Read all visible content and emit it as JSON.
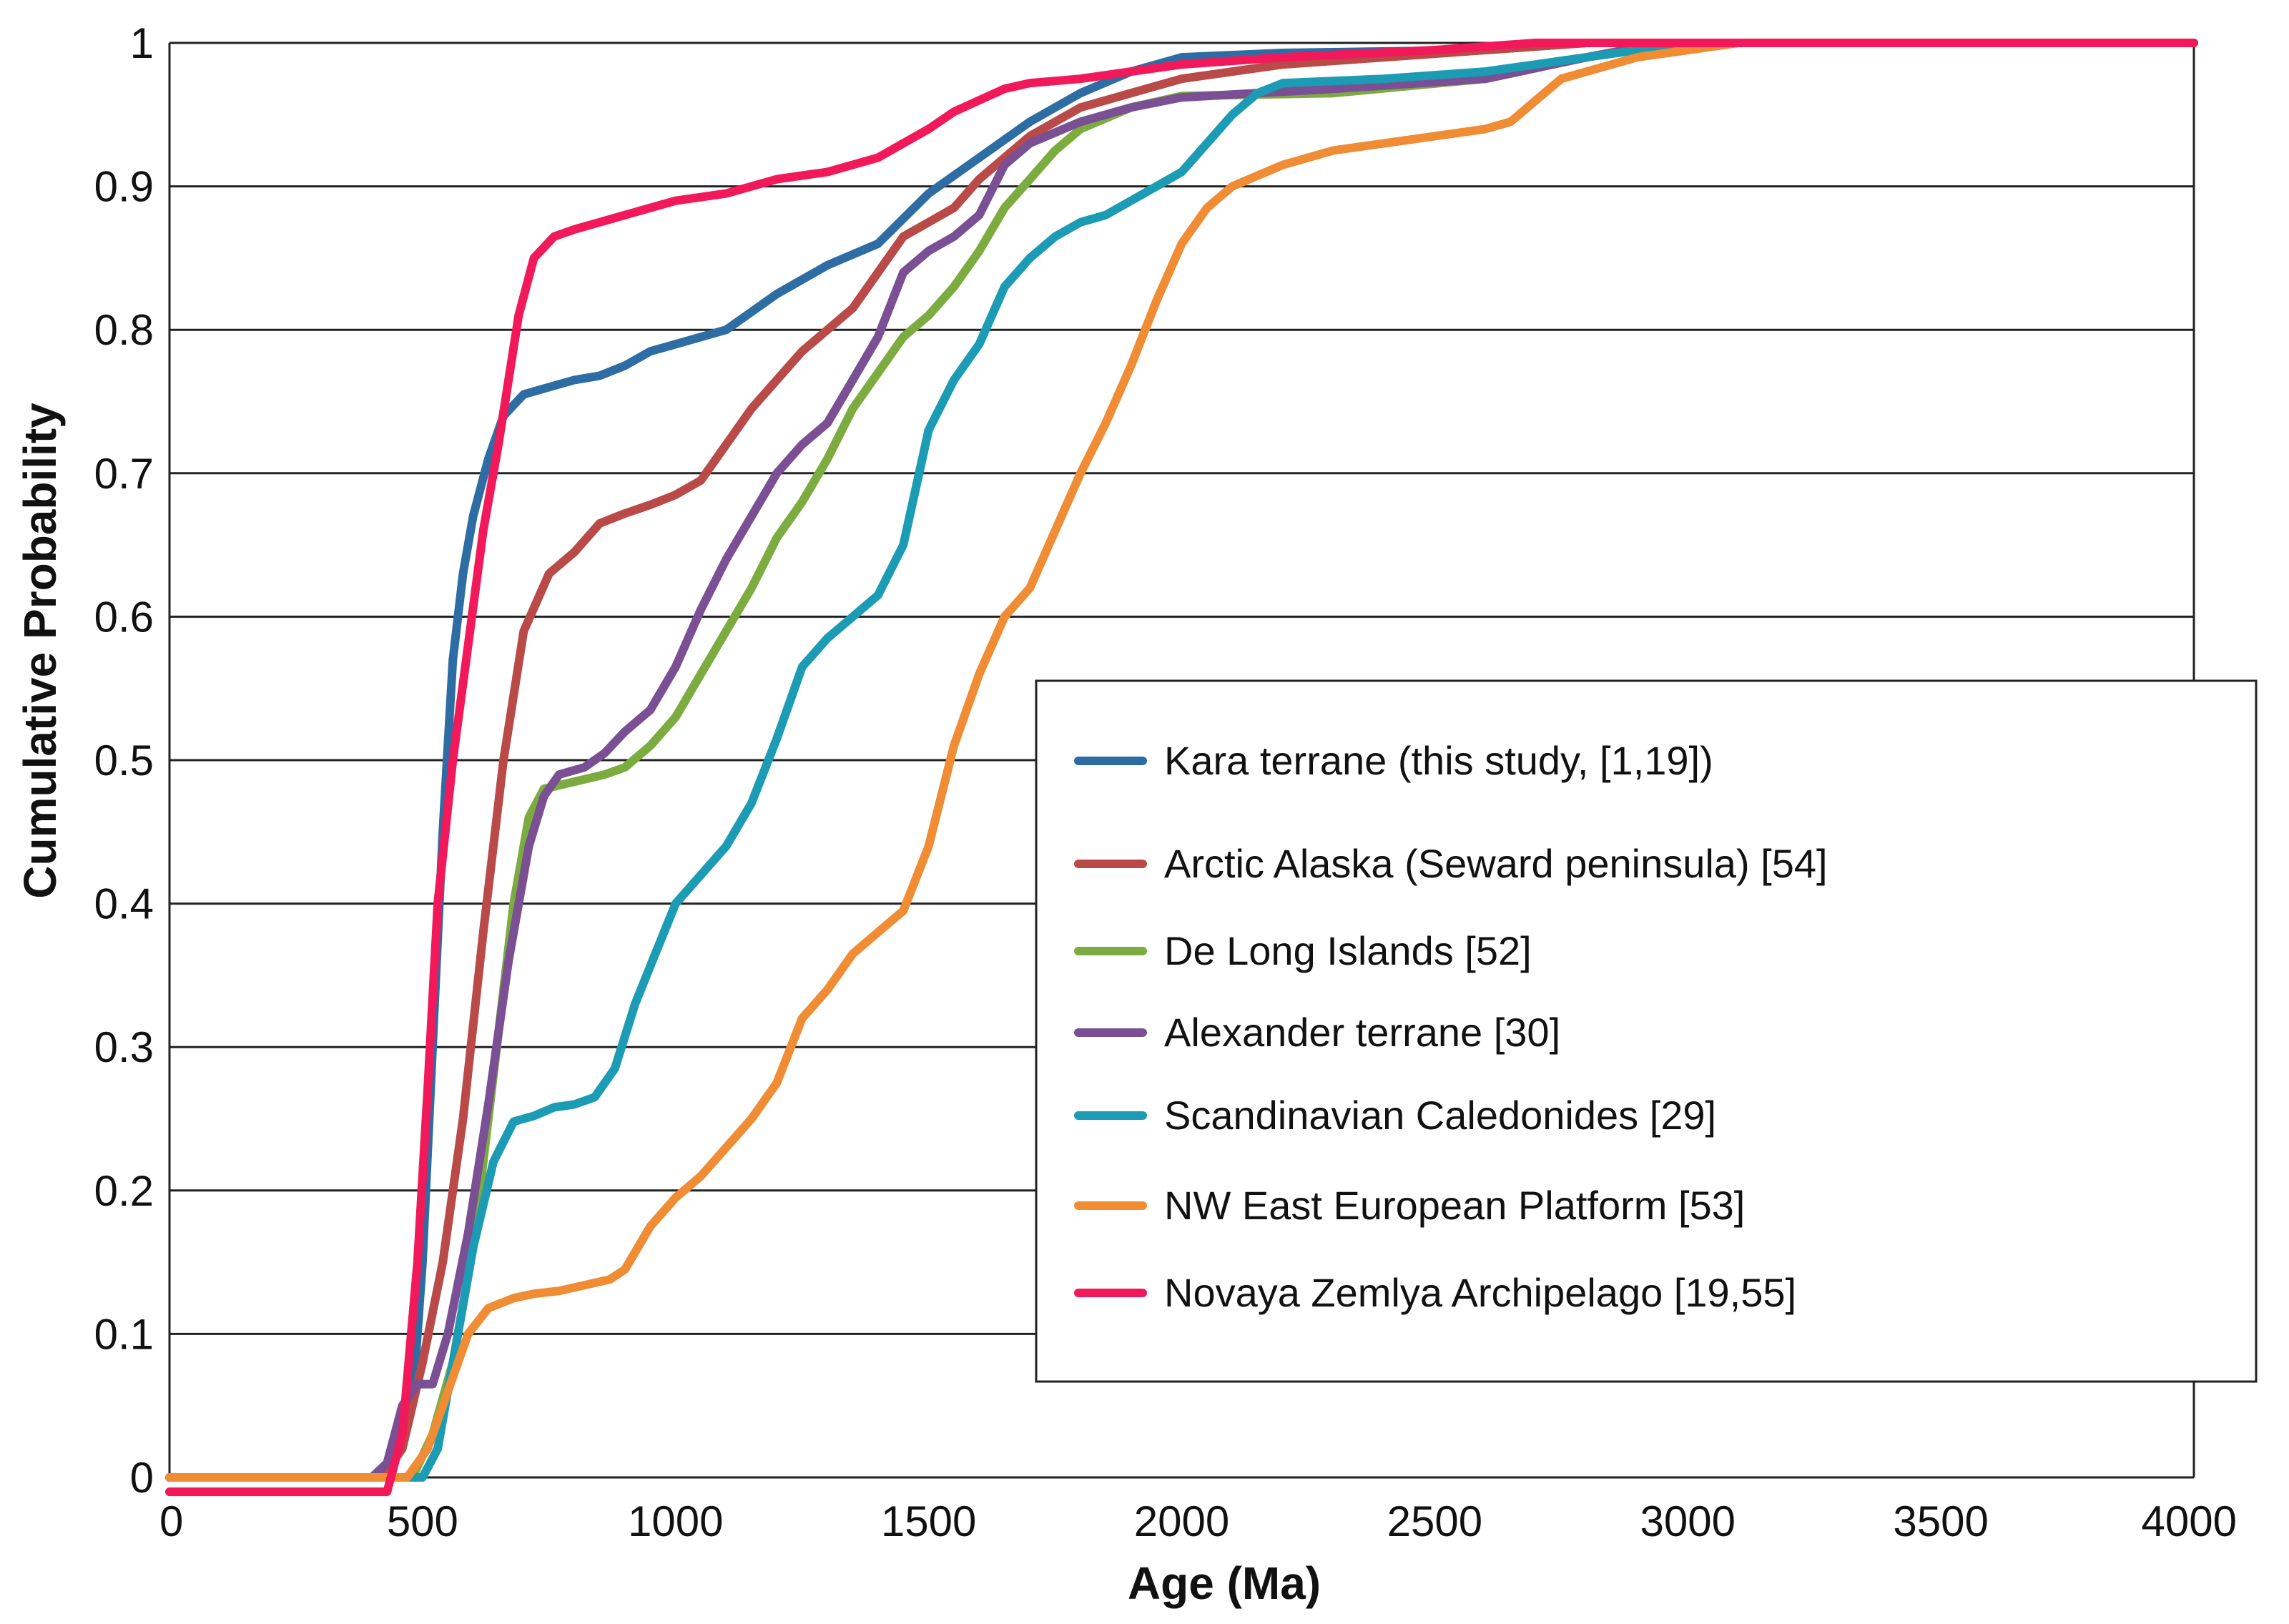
{
  "chart_data": {
    "type": "line",
    "title": "",
    "xlabel": "Age (Ma)",
    "ylabel": "Cumulative Probability",
    "xlim": [
      0,
      4000
    ],
    "ylim": [
      0,
      1
    ],
    "x_ticks": [
      0,
      500,
      1000,
      1500,
      2000,
      2500,
      3000,
      3500,
      4000
    ],
    "y_ticks": [
      0,
      0.1,
      0.2,
      0.3,
      0.4,
      0.5,
      0.6,
      0.7,
      0.8,
      0.9,
      1
    ],
    "x_tick_labels": [
      "0",
      "500",
      "1000",
      "1500",
      "2000",
      "2500",
      "3000",
      "3500",
      "4000"
    ],
    "y_tick_labels": [
      "0",
      "0.1",
      "0.2",
      "0.3",
      "0.4",
      "0.5",
      "0.6",
      "0.7",
      "0.8",
      "0.9",
      "1"
    ],
    "grid": "horizontal",
    "legend_position": "center-right",
    "series": [
      {
        "name": "Kara terrane (this study, [1,19])",
        "color": "#2e6ca4",
        "points": [
          [
            0,
            0
          ],
          [
            400,
            0
          ],
          [
            440,
            0.01
          ],
          [
            480,
            0.05
          ],
          [
            500,
            0.15
          ],
          [
            520,
            0.3
          ],
          [
            540,
            0.45
          ],
          [
            560,
            0.57
          ],
          [
            580,
            0.63
          ],
          [
            600,
            0.67
          ],
          [
            630,
            0.71
          ],
          [
            660,
            0.74
          ],
          [
            700,
            0.755
          ],
          [
            750,
            0.76
          ],
          [
            800,
            0.765
          ],
          [
            850,
            0.768
          ],
          [
            900,
            0.775
          ],
          [
            950,
            0.785
          ],
          [
            1000,
            0.79
          ],
          [
            1100,
            0.8
          ],
          [
            1200,
            0.825
          ],
          [
            1300,
            0.845
          ],
          [
            1400,
            0.86
          ],
          [
            1500,
            0.895
          ],
          [
            1600,
            0.92
          ],
          [
            1700,
            0.945
          ],
          [
            1800,
            0.965
          ],
          [
            1900,
            0.98
          ],
          [
            2000,
            0.99
          ],
          [
            2200,
            0.993
          ],
          [
            2600,
            0.995
          ],
          [
            2800,
            1
          ],
          [
            4000,
            1
          ]
        ]
      },
      {
        "name": "Arctic Alaska (Seward peninsula) [54]",
        "color": "#b94a48",
        "points": [
          [
            0,
            0
          ],
          [
            420,
            0
          ],
          [
            460,
            0.02
          ],
          [
            500,
            0.08
          ],
          [
            540,
            0.15
          ],
          [
            580,
            0.25
          ],
          [
            620,
            0.38
          ],
          [
            660,
            0.5
          ],
          [
            700,
            0.59
          ],
          [
            750,
            0.63
          ],
          [
            800,
            0.645
          ],
          [
            850,
            0.665
          ],
          [
            900,
            0.672
          ],
          [
            950,
            0.678
          ],
          [
            1000,
            0.685
          ],
          [
            1050,
            0.695
          ],
          [
            1100,
            0.72
          ],
          [
            1150,
            0.745
          ],
          [
            1200,
            0.765
          ],
          [
            1250,
            0.785
          ],
          [
            1300,
            0.8
          ],
          [
            1350,
            0.815
          ],
          [
            1400,
            0.84
          ],
          [
            1450,
            0.865
          ],
          [
            1500,
            0.875
          ],
          [
            1550,
            0.885
          ],
          [
            1600,
            0.905
          ],
          [
            1650,
            0.92
          ],
          [
            1700,
            0.935
          ],
          [
            1800,
            0.955
          ],
          [
            1900,
            0.965
          ],
          [
            2000,
            0.975
          ],
          [
            2200,
            0.985
          ],
          [
            2400,
            0.99
          ],
          [
            2800,
            1
          ],
          [
            4000,
            1
          ]
        ]
      },
      {
        "name": "De Long Islands [52]",
        "color": "#7cac3f",
        "points": [
          [
            0,
            0
          ],
          [
            480,
            0
          ],
          [
            520,
            0.03
          ],
          [
            560,
            0.08
          ],
          [
            600,
            0.16
          ],
          [
            640,
            0.28
          ],
          [
            680,
            0.4
          ],
          [
            710,
            0.46
          ],
          [
            740,
            0.48
          ],
          [
            800,
            0.485
          ],
          [
            860,
            0.49
          ],
          [
            900,
            0.495
          ],
          [
            950,
            0.51
          ],
          [
            1000,
            0.53
          ],
          [
            1050,
            0.56
          ],
          [
            1100,
            0.59
          ],
          [
            1150,
            0.62
          ],
          [
            1200,
            0.655
          ],
          [
            1250,
            0.68
          ],
          [
            1300,
            0.71
          ],
          [
            1350,
            0.745
          ],
          [
            1400,
            0.77
          ],
          [
            1450,
            0.795
          ],
          [
            1500,
            0.81
          ],
          [
            1550,
            0.83
          ],
          [
            1600,
            0.855
          ],
          [
            1650,
            0.885
          ],
          [
            1700,
            0.905
          ],
          [
            1750,
            0.925
          ],
          [
            1800,
            0.94
          ],
          [
            1900,
            0.955
          ],
          [
            2000,
            0.963
          ],
          [
            2300,
            0.965
          ],
          [
            2600,
            0.975
          ],
          [
            2800,
            0.99
          ],
          [
            2950,
            1
          ],
          [
            4000,
            1
          ]
        ]
      },
      {
        "name": "Alexander terrane [30]",
        "color": "#7a4f94",
        "points": [
          [
            0,
            0
          ],
          [
            400,
            0
          ],
          [
            430,
            0.01
          ],
          [
            460,
            0.05
          ],
          [
            490,
            0.065
          ],
          [
            520,
            0.065
          ],
          [
            550,
            0.1
          ],
          [
            590,
            0.17
          ],
          [
            630,
            0.26
          ],
          [
            670,
            0.36
          ],
          [
            710,
            0.44
          ],
          [
            740,
            0.475
          ],
          [
            770,
            0.49
          ],
          [
            820,
            0.495
          ],
          [
            860,
            0.505
          ],
          [
            900,
            0.52
          ],
          [
            950,
            0.535
          ],
          [
            1000,
            0.565
          ],
          [
            1050,
            0.605
          ],
          [
            1100,
            0.64
          ],
          [
            1150,
            0.67
          ],
          [
            1200,
            0.7
          ],
          [
            1250,
            0.72
          ],
          [
            1300,
            0.735
          ],
          [
            1350,
            0.765
          ],
          [
            1400,
            0.795
          ],
          [
            1450,
            0.84
          ],
          [
            1500,
            0.855
          ],
          [
            1550,
            0.865
          ],
          [
            1600,
            0.88
          ],
          [
            1650,
            0.915
          ],
          [
            1700,
            0.93
          ],
          [
            1800,
            0.945
          ],
          [
            1900,
            0.955
          ],
          [
            2000,
            0.962
          ],
          [
            2300,
            0.968
          ],
          [
            2600,
            0.975
          ],
          [
            2800,
            0.99
          ],
          [
            2950,
            1
          ],
          [
            4000,
            1
          ]
        ]
      },
      {
        "name": "Scandinavian Caledonides [29]",
        "color": "#1b9bb4",
        "points": [
          [
            0,
            0
          ],
          [
            500,
            0
          ],
          [
            530,
            0.02
          ],
          [
            560,
            0.08
          ],
          [
            600,
            0.16
          ],
          [
            640,
            0.22
          ],
          [
            680,
            0.248
          ],
          [
            720,
            0.252
          ],
          [
            760,
            0.258
          ],
          [
            800,
            0.26
          ],
          [
            840,
            0.265
          ],
          [
            880,
            0.285
          ],
          [
            920,
            0.33
          ],
          [
            960,
            0.365
          ],
          [
            1000,
            0.4
          ],
          [
            1050,
            0.42
          ],
          [
            1100,
            0.44
          ],
          [
            1150,
            0.47
          ],
          [
            1200,
            0.515
          ],
          [
            1250,
            0.565
          ],
          [
            1300,
            0.585
          ],
          [
            1350,
            0.6
          ],
          [
            1400,
            0.615
          ],
          [
            1450,
            0.65
          ],
          [
            1500,
            0.73
          ],
          [
            1550,
            0.765
          ],
          [
            1600,
            0.79
          ],
          [
            1650,
            0.83
          ],
          [
            1700,
            0.85
          ],
          [
            1750,
            0.865
          ],
          [
            1800,
            0.875
          ],
          [
            1850,
            0.88
          ],
          [
            1900,
            0.89
          ],
          [
            1950,
            0.9
          ],
          [
            2000,
            0.91
          ],
          [
            2050,
            0.93
          ],
          [
            2100,
            0.95
          ],
          [
            2150,
            0.965
          ],
          [
            2200,
            0.972
          ],
          [
            2400,
            0.975
          ],
          [
            2600,
            0.98
          ],
          [
            2800,
            0.99
          ],
          [
            3000,
            1
          ],
          [
            4000,
            1
          ]
        ]
      },
      {
        "name": "NW East European Platform [53]",
        "color": "#ef8c34",
        "points": [
          [
            0,
            0
          ],
          [
            470,
            0
          ],
          [
            510,
            0.02
          ],
          [
            550,
            0.06
          ],
          [
            590,
            0.1
          ],
          [
            630,
            0.118
          ],
          [
            680,
            0.125
          ],
          [
            720,
            0.128
          ],
          [
            770,
            0.13
          ],
          [
            820,
            0.134
          ],
          [
            870,
            0.138
          ],
          [
            900,
            0.145
          ],
          [
            950,
            0.175
          ],
          [
            1000,
            0.195
          ],
          [
            1050,
            0.21
          ],
          [
            1100,
            0.23
          ],
          [
            1150,
            0.25
          ],
          [
            1200,
            0.275
          ],
          [
            1250,
            0.32
          ],
          [
            1300,
            0.34
          ],
          [
            1350,
            0.365
          ],
          [
            1400,
            0.38
          ],
          [
            1450,
            0.395
          ],
          [
            1500,
            0.44
          ],
          [
            1550,
            0.51
          ],
          [
            1600,
            0.56
          ],
          [
            1650,
            0.6
          ],
          [
            1700,
            0.62
          ],
          [
            1750,
            0.66
          ],
          [
            1800,
            0.7
          ],
          [
            1850,
            0.735
          ],
          [
            1900,
            0.775
          ],
          [
            1950,
            0.82
          ],
          [
            2000,
            0.86
          ],
          [
            2050,
            0.885
          ],
          [
            2100,
            0.9
          ],
          [
            2200,
            0.915
          ],
          [
            2300,
            0.925
          ],
          [
            2400,
            0.93
          ],
          [
            2500,
            0.935
          ],
          [
            2600,
            0.94
          ],
          [
            2650,
            0.945
          ],
          [
            2700,
            0.96
          ],
          [
            2750,
            0.975
          ],
          [
            2800,
            0.98
          ],
          [
            2900,
            0.99
          ],
          [
            3000,
            0.995
          ],
          [
            3100,
            1
          ],
          [
            4000,
            1
          ]
        ]
      },
      {
        "name": "Novaya Zemlya Archipelago [19,55]",
        "color": "#f1195a",
        "points": [
          [
            0,
            -0.01
          ],
          [
            430,
            -0.01
          ],
          [
            460,
            0.03
          ],
          [
            490,
            0.15
          ],
          [
            510,
            0.27
          ],
          [
            530,
            0.4
          ],
          [
            560,
            0.5
          ],
          [
            590,
            0.58
          ],
          [
            620,
            0.66
          ],
          [
            650,
            0.72
          ],
          [
            690,
            0.81
          ],
          [
            720,
            0.85
          ],
          [
            760,
            0.865
          ],
          [
            800,
            0.87
          ],
          [
            850,
            0.875
          ],
          [
            900,
            0.88
          ],
          [
            950,
            0.885
          ],
          [
            1000,
            0.89
          ],
          [
            1100,
            0.895
          ],
          [
            1150,
            0.9
          ],
          [
            1200,
            0.905
          ],
          [
            1300,
            0.91
          ],
          [
            1400,
            0.92
          ],
          [
            1450,
            0.93
          ],
          [
            1500,
            0.94
          ],
          [
            1550,
            0.952
          ],
          [
            1600,
            0.96
          ],
          [
            1650,
            0.968
          ],
          [
            1700,
            0.972
          ],
          [
            1800,
            0.975
          ],
          [
            1900,
            0.98
          ],
          [
            2000,
            0.985
          ],
          [
            2200,
            0.99
          ],
          [
            2500,
            0.995
          ],
          [
            2700,
            1
          ],
          [
            4000,
            1
          ]
        ]
      }
    ]
  }
}
